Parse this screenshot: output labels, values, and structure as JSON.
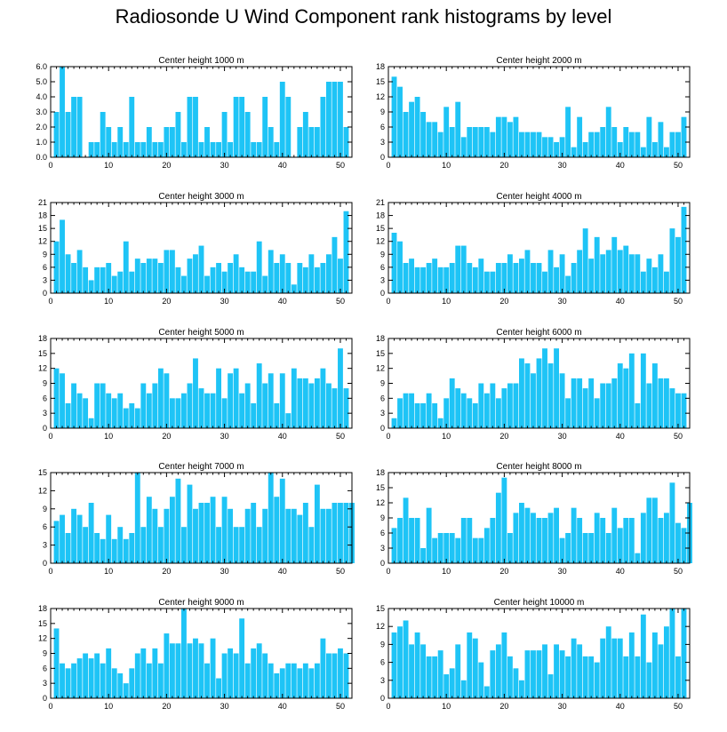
{
  "title": "Radiosonde U Wind Component rank histograms by level",
  "colors": {
    "bar": "#1ec4f6",
    "axis": "#000000"
  },
  "chart_data": [
    {
      "type": "bar",
      "title": "Center height 1000 m",
      "xlim": [
        0,
        52
      ],
      "ylim": [
        0,
        6
      ],
      "xticks": [
        0,
        10,
        20,
        30,
        40,
        50
      ],
      "yticks": [
        0,
        1,
        2,
        3,
        4,
        5,
        6
      ],
      "ytick_labels": [
        "0.0",
        "1.0",
        "2.0",
        "3.0",
        "4.0",
        "5.0",
        "6.0"
      ],
      "values": [
        3,
        6,
        3,
        4,
        4,
        0,
        1,
        1,
        3,
        2,
        1,
        2,
        1,
        4,
        1,
        1,
        2,
        1,
        1,
        2,
        2,
        3,
        1,
        4,
        4,
        1,
        2,
        1,
        1,
        3,
        1,
        4,
        4,
        3,
        1,
        1,
        4,
        2,
        1,
        5,
        4,
        0,
        2,
        3,
        2,
        2,
        4,
        5,
        5,
        5,
        2
      ]
    },
    {
      "type": "bar",
      "title": "Center height 2000 m",
      "xlim": [
        0,
        52
      ],
      "ylim": [
        0,
        18
      ],
      "xticks": [
        0,
        10,
        20,
        30,
        40,
        50
      ],
      "yticks": [
        0,
        3,
        6,
        9,
        12,
        15,
        18
      ],
      "values": [
        16,
        14,
        9,
        11,
        12,
        9,
        7,
        7,
        5,
        10,
        6,
        11,
        4,
        6,
        6,
        6,
        6,
        5,
        8,
        8,
        7,
        8,
        5,
        5,
        5,
        5,
        4,
        4,
        3,
        4,
        10,
        2,
        8,
        3,
        5,
        5,
        6,
        10,
        6,
        3,
        6,
        5,
        5,
        2,
        8,
        3,
        7,
        2,
        5,
        5,
        8
      ]
    },
    {
      "type": "bar",
      "title": "Center height 3000 m",
      "xlim": [
        0,
        52
      ],
      "ylim": [
        0,
        21
      ],
      "xticks": [
        0,
        10,
        20,
        30,
        40,
        50
      ],
      "yticks": [
        0,
        3,
        6,
        9,
        12,
        15,
        18,
        21
      ],
      "values": [
        12,
        17,
        9,
        7,
        10,
        6,
        3,
        6,
        6,
        7,
        4,
        5,
        12,
        5,
        8,
        7,
        8,
        8,
        7,
        10,
        10,
        6,
        4,
        8,
        9,
        11,
        4,
        6,
        7,
        5,
        7,
        9,
        6,
        5,
        5,
        12,
        4,
        10,
        7,
        9,
        7,
        2,
        7,
        6,
        9,
        6,
        7,
        9,
        13,
        8,
        19
      ]
    },
    {
      "type": "bar",
      "title": "Center height 4000 m",
      "xlim": [
        0,
        52
      ],
      "ylim": [
        0,
        21
      ],
      "xticks": [
        0,
        10,
        20,
        30,
        40,
        50
      ],
      "yticks": [
        0,
        3,
        6,
        9,
        12,
        15,
        18,
        21
      ],
      "values": [
        14,
        12,
        7,
        8,
        6,
        6,
        7,
        8,
        6,
        6,
        7,
        11,
        11,
        7,
        6,
        8,
        5,
        5,
        7,
        7,
        9,
        7,
        8,
        10,
        7,
        7,
        5,
        10,
        6,
        9,
        4,
        7,
        10,
        15,
        8,
        13,
        9,
        10,
        13,
        10,
        11,
        9,
        9,
        5,
        8,
        6,
        9,
        5,
        15,
        13,
        20
      ]
    },
    {
      "type": "bar",
      "title": "Center height 5000 m",
      "xlim": [
        0,
        52
      ],
      "ylim": [
        0,
        18
      ],
      "xticks": [
        0,
        10,
        20,
        30,
        40,
        50
      ],
      "yticks": [
        0,
        3,
        6,
        9,
        12,
        15,
        18
      ],
      "values": [
        12,
        11,
        5,
        9,
        7,
        6,
        2,
        9,
        9,
        7,
        6,
        7,
        4,
        5,
        4,
        9,
        7,
        9,
        12,
        11,
        6,
        6,
        7,
        9,
        14,
        8,
        7,
        7,
        12,
        6,
        11,
        12,
        7,
        9,
        5,
        13,
        9,
        11,
        5,
        11,
        3,
        12,
        10,
        10,
        9,
        10,
        12,
        9,
        8,
        16,
        8
      ]
    },
    {
      "type": "bar",
      "title": "Center height 6000 m",
      "xlim": [
        0,
        52
      ],
      "ylim": [
        0,
        18
      ],
      "xticks": [
        0,
        10,
        20,
        30,
        40,
        50
      ],
      "yticks": [
        0,
        3,
        6,
        9,
        12,
        15,
        18
      ],
      "values": [
        2,
        6,
        7,
        7,
        5,
        5,
        7,
        5,
        2,
        6,
        10,
        8,
        7,
        6,
        5,
        9,
        7,
        9,
        6,
        8,
        9,
        9,
        14,
        13,
        11,
        14,
        16,
        13,
        16,
        11,
        6,
        10,
        10,
        8,
        10,
        6,
        9,
        9,
        10,
        13,
        12,
        15,
        5,
        15,
        9,
        13,
        10,
        10,
        8,
        7,
        7
      ]
    },
    {
      "type": "bar",
      "title": "Center height 7000 m",
      "xlim": [
        0,
        52
      ],
      "ylim": [
        0,
        15
      ],
      "xticks": [
        0,
        10,
        20,
        30,
        40,
        50
      ],
      "yticks": [
        0,
        3,
        6,
        9,
        12,
        15
      ],
      "values": [
        7,
        8,
        5,
        9,
        8,
        6,
        10,
        5,
        4,
        8,
        4,
        6,
        4,
        5,
        15,
        6,
        11,
        9,
        6,
        9,
        11,
        14,
        6,
        13,
        9,
        10,
        10,
        11,
        6,
        11,
        9,
        6,
        6,
        9,
        10,
        6,
        9,
        15,
        11,
        14,
        9,
        9,
        8,
        10,
        6,
        13,
        9,
        9,
        10,
        10,
        10,
        10
      ]
    },
    {
      "type": "bar",
      "title": "Center height 8000 m",
      "xlim": [
        0,
        52
      ],
      "ylim": [
        0,
        18
      ],
      "xticks": [
        0,
        10,
        20,
        30,
        40,
        50
      ],
      "yticks": [
        0,
        3,
        6,
        9,
        12,
        15,
        18
      ],
      "values": [
        7,
        9,
        13,
        9,
        9,
        3,
        11,
        5,
        6,
        6,
        6,
        5,
        9,
        9,
        5,
        5,
        7,
        9,
        14,
        17,
        6,
        10,
        12,
        11,
        10,
        9,
        9,
        10,
        11,
        5,
        6,
        11,
        9,
        6,
        6,
        10,
        9,
        6,
        11,
        7,
        9,
        9,
        2,
        10,
        13,
        13,
        9,
        10,
        16,
        8,
        7,
        12
      ]
    },
    {
      "type": "bar",
      "title": "Center height 9000 m",
      "xlim": [
        0,
        52
      ],
      "ylim": [
        0,
        18
      ],
      "xticks": [
        0,
        10,
        20,
        30,
        40,
        50
      ],
      "yticks": [
        0,
        3,
        6,
        9,
        12,
        15,
        18
      ],
      "values": [
        14,
        7,
        6,
        7,
        8,
        9,
        8,
        9,
        7,
        10,
        6,
        5,
        3,
        6,
        9,
        10,
        7,
        10,
        7,
        13,
        11,
        11,
        18,
        11,
        12,
        11,
        7,
        12,
        4,
        9,
        10,
        9,
        16,
        7,
        10,
        11,
        9,
        7,
        5,
        6,
        7,
        7,
        6,
        7,
        6,
        7,
        12,
        9,
        9,
        10,
        9
      ]
    },
    {
      "type": "bar",
      "title": "Center height 10000 m",
      "xlim": [
        0,
        52
      ],
      "ylim": [
        0,
        15
      ],
      "xticks": [
        0,
        10,
        20,
        30,
        40,
        50
      ],
      "yticks": [
        0,
        3,
        6,
        9,
        12,
        15
      ],
      "values": [
        11,
        12,
        13,
        9,
        11,
        9,
        7,
        7,
        8,
        4,
        5,
        9,
        3,
        11,
        10,
        6,
        2,
        8,
        9,
        11,
        7,
        5,
        3,
        8,
        8,
        8,
        9,
        4,
        9,
        8,
        7,
        10,
        9,
        7,
        7,
        6,
        10,
        12,
        10,
        10,
        7,
        11,
        7,
        14,
        6,
        11,
        9,
        12,
        15,
        7,
        15
      ]
    }
  ]
}
